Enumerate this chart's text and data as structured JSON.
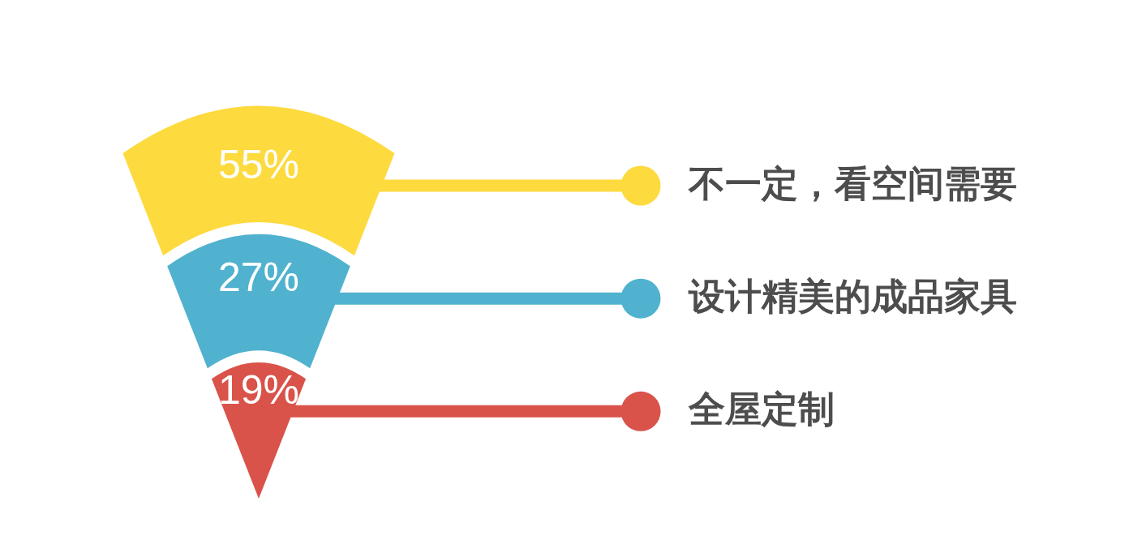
{
  "chart_data": {
    "type": "other",
    "categories": [
      "不一定，看空间需要",
      "设计精美的成品家具",
      "全屋定制"
    ],
    "values": [
      55,
      27,
      19
    ],
    "value_labels": [
      "55%",
      "27%",
      "19%"
    ],
    "colors": [
      "#fdda3e",
      "#50b2cf",
      "#d9534a"
    ]
  }
}
